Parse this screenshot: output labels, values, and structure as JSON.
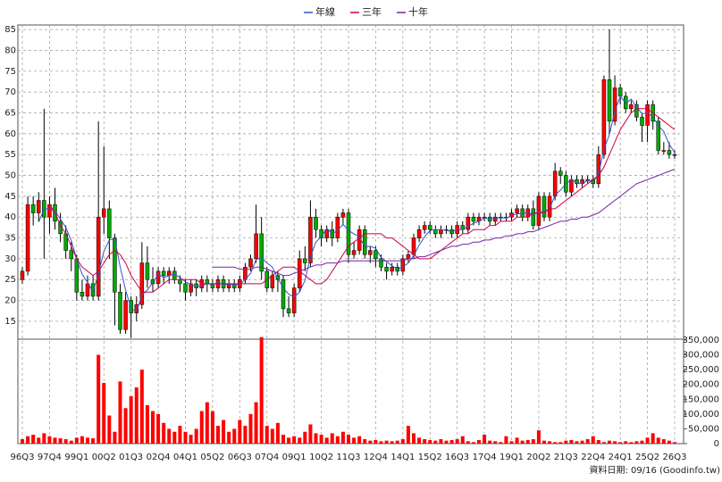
{
  "chart_data": {
    "type": "candlestick",
    "categories": [
      "96Q3",
      null,
      null,
      null,
      null,
      "97Q4",
      null,
      null,
      null,
      null,
      "99Q1",
      null,
      null,
      null,
      null,
      "00Q2",
      null,
      null,
      null,
      null,
      "01Q3",
      null,
      null,
      null,
      null,
      "02Q4",
      null,
      null,
      null,
      null,
      "04Q1",
      null,
      null,
      null,
      null,
      "05Q2",
      null,
      null,
      null,
      null,
      "06Q3",
      null,
      null,
      null,
      null,
      "07Q4",
      null,
      null,
      null,
      null,
      "09Q1",
      null,
      null,
      null,
      null,
      "10Q2",
      null,
      null,
      null,
      null,
      "11Q3",
      null,
      null,
      null,
      null,
      "12Q4",
      null,
      null,
      null,
      null,
      "14Q1",
      null,
      null,
      null,
      null,
      "15Q2",
      null,
      null,
      null,
      null,
      "16Q3",
      null,
      null,
      null,
      null,
      "17Q4",
      null,
      null,
      null,
      null,
      "19Q1",
      null,
      null,
      null,
      null,
      "20Q2",
      null,
      null,
      null,
      null,
      "21Q3",
      null,
      null,
      null,
      null,
      "22Q4",
      null,
      null,
      null,
      null,
      "24Q1",
      null,
      null,
      null,
      null,
      "25Q2",
      null,
      null,
      null,
      null,
      "26Q3"
    ],
    "candles": {
      "up_color": "#ff0000",
      "down_color": "#00aa00",
      "open": [
        25,
        27,
        43,
        41,
        44,
        40,
        43,
        39,
        36,
        32,
        30,
        22,
        21,
        24,
        21,
        40,
        42,
        35,
        22,
        13,
        20,
        17,
        19,
        29,
        25,
        24,
        27,
        26,
        27,
        25,
        24,
        22,
        24,
        23,
        25,
        24,
        23,
        25,
        23,
        24,
        23,
        25,
        28,
        30,
        36,
        27,
        23,
        26,
        25,
        18,
        17,
        23,
        30,
        29,
        40,
        37,
        35,
        37,
        35,
        40,
        41,
        31,
        32,
        37,
        31,
        32,
        30,
        28,
        27,
        28,
        27,
        30,
        31,
        35,
        37,
        38,
        37,
        36,
        37,
        37,
        36,
        38,
        37,
        40,
        39,
        40,
        40,
        39,
        40,
        40,
        40,
        41,
        42,
        40,
        42,
        38,
        45,
        40,
        45,
        51,
        50,
        46,
        49,
        48,
        49,
        49,
        48,
        55,
        73,
        63,
        71,
        69,
        66,
        67,
        64,
        62,
        67,
        63,
        56,
        56,
        55
      ],
      "high": [
        28,
        45,
        45,
        46,
        66,
        45,
        47,
        41,
        38,
        34,
        31,
        25,
        26,
        26,
        63,
        57,
        44,
        36,
        24,
        22,
        21,
        21,
        34,
        33,
        28,
        28,
        28,
        28,
        28,
        26,
        25,
        25,
        25,
        26,
        26,
        25,
        26,
        26,
        25,
        25,
        26,
        29,
        31,
        43,
        40,
        28,
        27,
        27,
        26,
        21,
        24,
        32,
        33,
        44,
        42,
        38,
        38,
        39,
        41,
        42,
        42,
        34,
        38,
        38,
        33,
        33,
        31,
        29,
        29,
        29,
        31,
        32,
        36,
        38,
        39,
        39,
        38,
        38,
        38,
        38,
        39,
        39,
        41,
        41,
        41,
        41,
        41,
        41,
        41,
        41,
        42,
        43,
        43,
        43,
        44,
        46,
        46,
        46,
        53,
        52,
        51,
        50,
        50,
        50,
        50,
        50,
        57,
        74,
        85,
        74,
        72,
        70,
        68,
        68,
        65,
        68,
        68,
        64,
        58,
        58,
        56
      ],
      "low": [
        24,
        26,
        38,
        39,
        30,
        36,
        37,
        34,
        30,
        27,
        20,
        20,
        20,
        20,
        20,
        36,
        30,
        14,
        12,
        12,
        11,
        15,
        18,
        23,
        22,
        23,
        24,
        24,
        24,
        22,
        20,
        21,
        21,
        22,
        22,
        22,
        22,
        22,
        22,
        22,
        22,
        24,
        27,
        29,
        25,
        22,
        22,
        22,
        16,
        16,
        16,
        22,
        27,
        28,
        35,
        33,
        34,
        33,
        34,
        38,
        29,
        30,
        31,
        30,
        29,
        28,
        27,
        25,
        26,
        26,
        26,
        29,
        30,
        34,
        36,
        36,
        35,
        35,
        36,
        35,
        35,
        36,
        36,
        38,
        38,
        39,
        38,
        38,
        39,
        39,
        39,
        40,
        39,
        39,
        37,
        37,
        39,
        39,
        44,
        48,
        45,
        45,
        47,
        47,
        48,
        47,
        47,
        54,
        60,
        62,
        67,
        65,
        65,
        63,
        58,
        58,
        61,
        55,
        55,
        54,
        54
      ],
      "close": [
        27,
        43,
        41,
        44,
        40,
        43,
        39,
        36,
        32,
        30,
        22,
        21,
        24,
        21,
        40,
        42,
        35,
        22,
        13,
        20,
        17,
        19,
        29,
        25,
        24,
        27,
        26,
        27,
        25,
        24,
        22,
        24,
        23,
        25,
        24,
        23,
        25,
        23,
        24,
        23,
        25,
        28,
        30,
        36,
        27,
        23,
        26,
        25,
        18,
        17,
        23,
        30,
        29,
        40,
        37,
        35,
        37,
        35,
        40,
        41,
        31,
        32,
        37,
        31,
        32,
        30,
        28,
        27,
        28,
        27,
        30,
        31,
        35,
        37,
        38,
        37,
        36,
        37,
        37,
        36,
        38,
        37,
        40,
        39,
        40,
        40,
        39,
        40,
        40,
        40,
        41,
        42,
        40,
        42,
        38,
        45,
        40,
        45,
        51,
        50,
        46,
        49,
        48,
        49,
        49,
        48,
        55,
        73,
        63,
        71,
        69,
        66,
        67,
        64,
        62,
        67,
        63,
        56,
        56,
        55,
        55
      ]
    },
    "series": [
      {
        "name": "年線",
        "color": "#3355cc",
        "values": [
          null,
          null,
          null,
          38.8,
          42,
          42,
          41.5,
          39.5,
          37.5,
          34.3,
          30,
          26.3,
          24.3,
          22,
          26.5,
          31.8,
          34.5,
          34.8,
          28,
          22.5,
          18,
          17.3,
          21.3,
          22.5,
          24.3,
          26.3,
          25.5,
          26,
          26.3,
          25.5,
          24.5,
          23.8,
          23.3,
          23.5,
          24,
          23.8,
          24.3,
          23.8,
          23.8,
          23.8,
          23.8,
          25,
          26.5,
          29.8,
          30.3,
          29,
          28,
          25.3,
          23,
          21.5,
          20.8,
          22,
          24.8,
          30.5,
          34,
          35.3,
          37.3,
          36,
          36.8,
          38.3,
          36.8,
          36,
          35.3,
          32.8,
          33,
          32.5,
          30.3,
          29.3,
          28.3,
          27.5,
          28,
          29,
          30.8,
          33.3,
          35.3,
          36.8,
          37,
          37,
          36.8,
          36.5,
          37,
          37,
          37.8,
          38.5,
          39,
          39.8,
          39.5,
          39.8,
          39.8,
          39.8,
          40.3,
          40.8,
          40.8,
          41.3,
          40.5,
          41.3,
          41.3,
          42,
          45.3,
          46.5,
          48,
          49,
          48.3,
          48,
          48.8,
          48.5,
          50.3,
          56.3,
          59.8,
          65.5,
          69,
          67.3,
          68.3,
          66.5,
          64.8,
          65,
          64,
          62,
          60.5,
          57.5,
          55.5
        ]
      },
      {
        "name": "三年",
        "color": "#cc0044",
        "values": [
          null,
          null,
          null,
          null,
          null,
          43,
          41,
          38,
          36,
          33,
          30,
          28,
          27,
          26,
          27,
          29,
          31,
          32,
          31,
          29,
          26,
          24,
          22,
          22,
          22,
          23,
          24,
          25,
          25,
          25,
          25,
          25,
          25,
          24,
          24,
          24,
          24,
          24,
          24,
          24,
          24,
          24,
          24,
          24,
          24,
          25,
          26,
          27,
          28,
          28,
          28,
          27,
          26,
          25,
          24,
          24,
          25,
          27,
          29,
          31,
          33,
          34,
          35,
          36,
          36,
          36,
          36,
          35,
          35,
          34,
          33,
          32,
          31,
          30,
          30,
          30,
          31,
          32,
          33,
          34,
          35,
          36,
          36,
          37,
          37,
          37,
          38,
          38,
          39,
          39,
          39,
          40,
          40,
          40,
          41,
          41,
          41,
          42,
          42,
          43,
          44,
          45,
          46,
          47,
          48,
          49,
          50,
          52,
          55,
          58,
          61,
          63,
          65,
          66,
          66,
          66,
          65,
          64,
          63,
          62,
          61
        ]
      },
      {
        "name": "十年",
        "color": "#7722aa",
        "values": [
          null,
          null,
          null,
          null,
          null,
          null,
          null,
          null,
          null,
          null,
          null,
          null,
          null,
          null,
          null,
          null,
          null,
          null,
          null,
          null,
          null,
          null,
          null,
          null,
          null,
          null,
          null,
          null,
          null,
          null,
          null,
          null,
          null,
          null,
          null,
          28,
          28,
          28,
          28,
          28,
          27.5,
          27.5,
          27.5,
          28,
          28,
          27.5,
          27,
          26.5,
          26,
          26,
          26.5,
          27,
          27.5,
          28,
          28.5,
          28.5,
          29,
          29,
          29,
          29.5,
          29.5,
          29.5,
          29.5,
          29.5,
          29.5,
          29.5,
          29.5,
          29.5,
          29.5,
          29.5,
          29.5,
          30,
          30,
          30.5,
          30.5,
          31,
          31.5,
          32,
          32.5,
          33,
          33,
          33.5,
          33.5,
          34,
          34,
          34.5,
          34.5,
          35,
          35,
          35.5,
          35.5,
          36,
          36,
          36.5,
          36.5,
          37,
          37.5,
          38,
          38.5,
          39,
          39,
          39.5,
          39.5,
          40,
          40,
          40.5,
          41,
          42,
          43,
          44,
          45,
          46,
          47,
          48,
          48.5,
          49,
          49.5,
          50,
          50.5,
          51,
          51.5
        ]
      }
    ],
    "ylim": [
      10.7,
      86.1
    ],
    "yticks": [
      15,
      20,
      25,
      30,
      35,
      40,
      45,
      50,
      55,
      60,
      65,
      70,
      75,
      80,
      85
    ],
    "volume": {
      "color": "#ff0000",
      "values": [
        15000,
        25000,
        30000,
        20000,
        35000,
        25000,
        20000,
        18000,
        15000,
        10000,
        20000,
        25000,
        20000,
        18000,
        300000,
        205000,
        95000,
        40000,
        210000,
        120000,
        160000,
        190000,
        250000,
        130000,
        110000,
        100000,
        70000,
        50000,
        40000,
        60000,
        40000,
        30000,
        50000,
        110000,
        140000,
        110000,
        60000,
        80000,
        40000,
        50000,
        80000,
        60000,
        100000,
        140000,
        360000,
        60000,
        50000,
        70000,
        30000,
        20000,
        25000,
        20000,
        40000,
        65000,
        35000,
        30000,
        20000,
        35000,
        25000,
        40000,
        30000,
        20000,
        25000,
        15000,
        10000,
        12000,
        8000,
        10000,
        8000,
        10000,
        15000,
        60000,
        35000,
        20000,
        15000,
        12000,
        10000,
        15000,
        10000,
        12000,
        15000,
        25000,
        8000,
        5000,
        12000,
        30000,
        10000,
        8000,
        5000,
        25000,
        8000,
        20000,
        10000,
        12000,
        15000,
        45000,
        10000,
        8000,
        5000,
        5000,
        10000,
        12000,
        8000,
        10000,
        15000,
        25000,
        12000,
        5000,
        10000,
        8000,
        5000,
        8000,
        5000,
        8000,
        10000,
        20000,
        35000,
        20000,
        15000,
        10000,
        5000
      ]
    },
    "y2lim": [
      0,
      353000
    ],
    "y2ticks": [
      0,
      {
        "value": 50000,
        "label": "50,000"
      },
      {
        "value": 100000,
        "label": "100,000"
      },
      {
        "value": 150000,
        "label": "150,000"
      },
      {
        "value": 200000,
        "label": "200,000"
      },
      {
        "value": 250000,
        "label": "250,000"
      },
      {
        "value": 300000,
        "label": "300,000"
      },
      {
        "value": 350000,
        "label": "350,000"
      }
    ],
    "grid": true,
    "legend": "top",
    "source_note": "資料日期: 09/16 (Goodinfo.tw)"
  }
}
